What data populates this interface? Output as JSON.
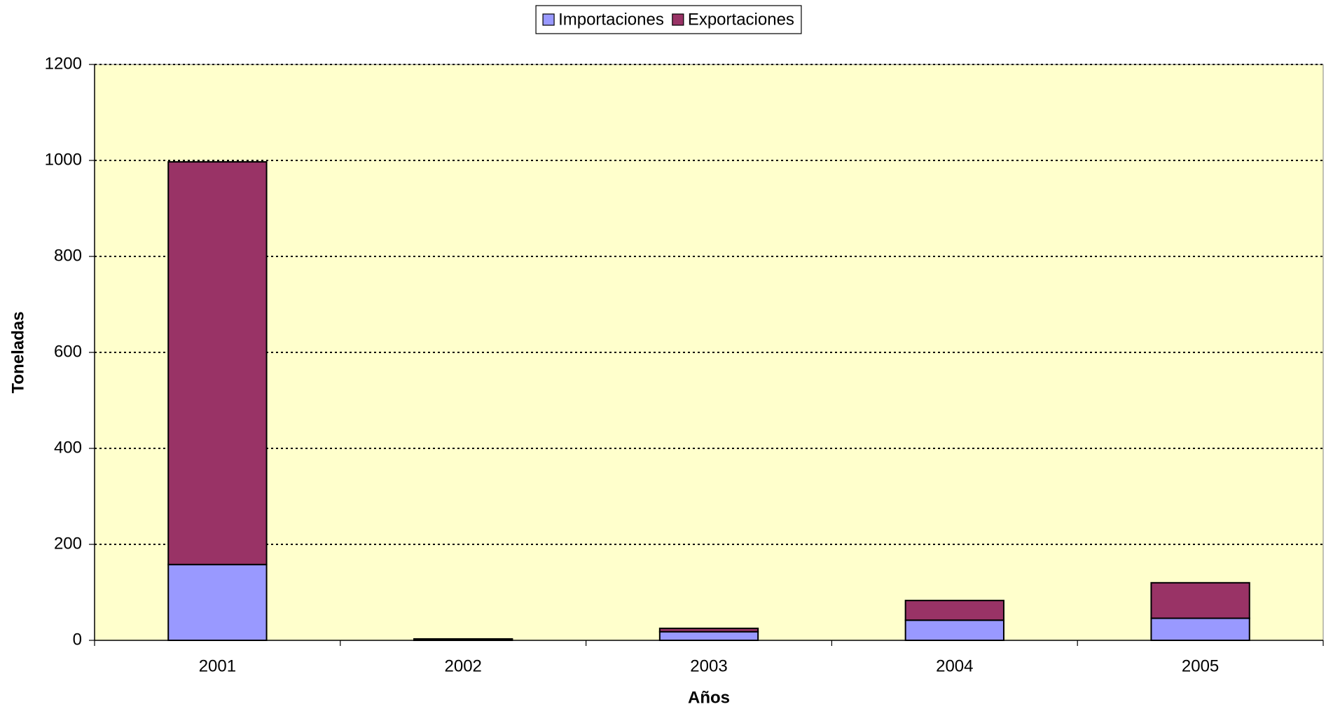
{
  "chart_data": {
    "type": "stacked_bar",
    "x_label": "Años",
    "y_label": "Toneladas",
    "categories": [
      "2001",
      "2002",
      "2003",
      "2004",
      "2005"
    ],
    "series": [
      {
        "name": "Importaciones",
        "color": "#9999ff",
        "values": [
          158,
          1,
          18,
          42,
          46
        ]
      },
      {
        "name": "Exportaciones",
        "color": "#993366",
        "values": [
          839,
          2,
          7,
          41,
          74
        ]
      }
    ],
    "ylim": [
      0,
      1200
    ],
    "yticks": [
      0,
      200,
      400,
      600,
      800,
      1000,
      1200
    ],
    "grid": true,
    "legend": "top",
    "plot_background": "#ffffcc"
  }
}
